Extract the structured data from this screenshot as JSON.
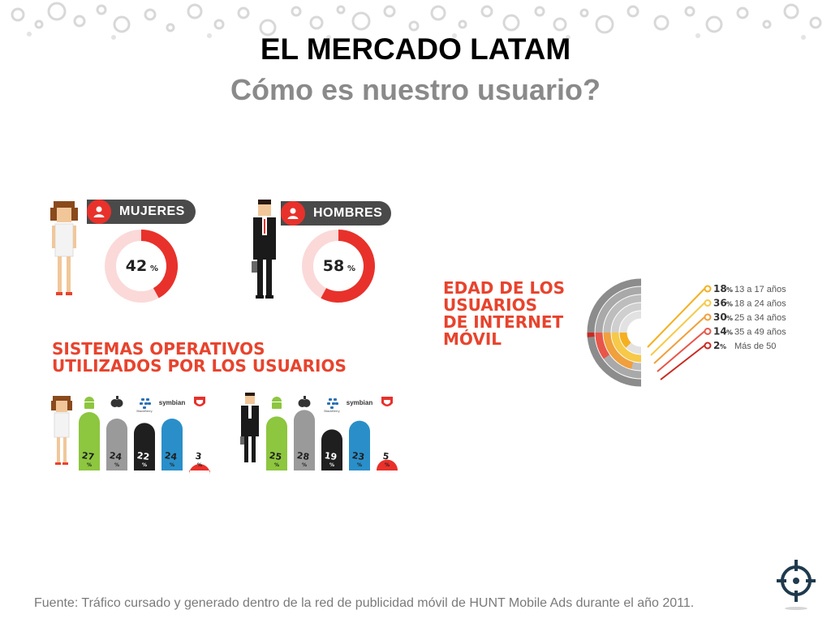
{
  "slide": {
    "title": "EL MERCADO LATAM",
    "subtitle": "Cómo es nuestro usuario?",
    "footer": "Fuente: Tráfico cursado y generado  dentro de la red de publicidad móvil de HUNT Mobile Ads durante el año 2011."
  },
  "gender": {
    "women": {
      "label": "MUJERES",
      "value": 42,
      "value_text": "42",
      "unit": "%"
    },
    "men": {
      "label": "HOMBRES",
      "value": 58,
      "value_text": "58",
      "unit": "%"
    }
  },
  "os_title_lines": [
    "SISTEMAS OPERATIVOS",
    "UTILIZADOS POR LOS USUARIOS"
  ],
  "age_title_lines": [
    "EDAD DE LOS",
    "USUARIOS",
    "DE INTERNET",
    "MÓVIL"
  ],
  "os_names": [
    "Android",
    "Apple",
    "BlackBerry",
    "symbian",
    "Otros"
  ],
  "os_icon_text": {
    "blackberry": "BlackBerry",
    "symbian": "symbian"
  },
  "colors": {
    "accent": "#e8312b",
    "android": "#8dc63f",
    "apple": "#9a9a9a",
    "blackberry": "#1f1f1f",
    "symbian": "#2a8fc9",
    "other": "#e8312b",
    "heading_red": "#e8432d",
    "dark_pill": "#4a4a4a",
    "ring_track": "#fbd9d9"
  },
  "chart_data": [
    {
      "type": "pie",
      "categories": [
        "MUJERES",
        "HOMBRES"
      ],
      "values": [
        42,
        58
      ],
      "unit": "%"
    },
    {
      "type": "bar",
      "title": "SISTEMAS OPERATIVOS UTILIZADOS POR LOS USUARIOS",
      "categories": [
        "Android",
        "Apple",
        "BlackBerry",
        "symbian",
        "Otros"
      ],
      "series": [
        {
          "name": "MUJERES",
          "values": [
            27,
            24,
            22,
            24,
            3
          ]
        },
        {
          "name": "HOMBRES",
          "values": [
            25,
            28,
            19,
            23,
            5
          ]
        }
      ],
      "unit": "%"
    },
    {
      "type": "pie",
      "title": "EDAD DE LOS USUARIOS DE INTERNET MÓVIL",
      "categories": [
        "13 a 17 años",
        "18 a 24 años",
        "25 a 34 años",
        "35 a 49 años",
        "Más de 50"
      ],
      "values": [
        18,
        36,
        30,
        14,
        2
      ],
      "unit": "%"
    }
  ],
  "age_colors": [
    "#f5b021",
    "#f7c948",
    "#f0a03c",
    "#e8564a",
    "#c92a22"
  ]
}
